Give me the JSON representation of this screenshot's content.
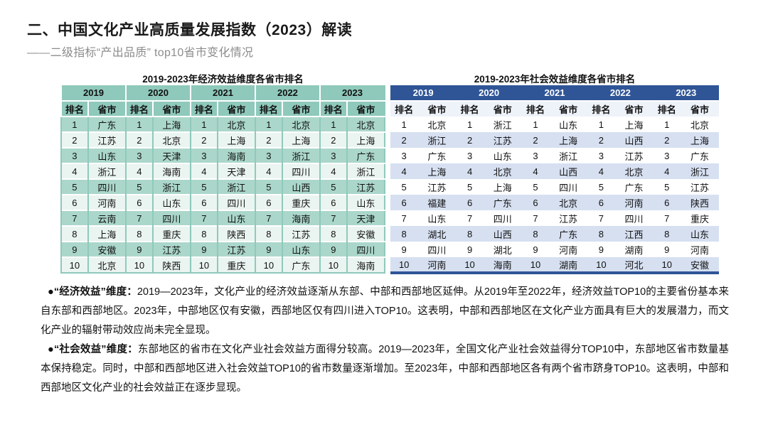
{
  "header": {
    "title": "二、中国文化产业高质量发展指数（2023）解读",
    "subtitle": "——二级指标“产出品质” top10省市变化情况"
  },
  "economic_table": {
    "title": "2019-2023年经济效益维度各省市排名",
    "years": [
      "2019",
      "2020",
      "2021",
      "2022",
      "2023"
    ],
    "rank_header": "排名",
    "province_header": "省市",
    "rows": [
      {
        "rank": "1",
        "provinces": [
          "广东",
          "上海",
          "北京",
          "北京",
          "北京"
        ]
      },
      {
        "rank": "2",
        "provinces": [
          "江苏",
          "北京",
          "上海",
          "上海",
          "上海"
        ]
      },
      {
        "rank": "3",
        "provinces": [
          "山东",
          "天津",
          "海南",
          "浙江",
          "广东"
        ]
      },
      {
        "rank": "4",
        "provinces": [
          "浙江",
          "海南",
          "天津",
          "四川",
          "浙江"
        ]
      },
      {
        "rank": "5",
        "provinces": [
          "四川",
          "浙江",
          "浙江",
          "山西",
          "江苏"
        ]
      },
      {
        "rank": "6",
        "provinces": [
          "河南",
          "山东",
          "四川",
          "重庆",
          "山东"
        ]
      },
      {
        "rank": "7",
        "provinces": [
          "云南",
          "四川",
          "山东",
          "海南",
          "天津"
        ]
      },
      {
        "rank": "8",
        "provinces": [
          "上海",
          "重庆",
          "陕西",
          "江苏",
          "安徽"
        ]
      },
      {
        "rank": "9",
        "provinces": [
          "安徽",
          "江苏",
          "江苏",
          "山东",
          "四川"
        ]
      },
      {
        "rank": "10",
        "provinces": [
          "北京",
          "陕西",
          "重庆",
          "广东",
          "海南"
        ]
      }
    ]
  },
  "social_table": {
    "title": "2019-2023年社会效益维度各省市排名",
    "years": [
      "2019",
      "2020",
      "2021",
      "2022",
      "2023"
    ],
    "rank_header": "排名",
    "province_header": "省市",
    "rows": [
      {
        "rank": "1",
        "provinces": [
          "北京",
          "浙江",
          "山东",
          "上海",
          "北京"
        ]
      },
      {
        "rank": "2",
        "provinces": [
          "浙江",
          "江苏",
          "上海",
          "山西",
          "上海"
        ]
      },
      {
        "rank": "3",
        "provinces": [
          "广东",
          "山东",
          "浙江",
          "江苏",
          "广东"
        ]
      },
      {
        "rank": "4",
        "provinces": [
          "上海",
          "北京",
          "山西",
          "北京",
          "浙江"
        ]
      },
      {
        "rank": "5",
        "provinces": [
          "江苏",
          "上海",
          "四川",
          "广东",
          "江苏"
        ]
      },
      {
        "rank": "6",
        "provinces": [
          "福建",
          "广东",
          "北京",
          "河南",
          "陕西"
        ]
      },
      {
        "rank": "7",
        "provinces": [
          "山东",
          "四川",
          "江苏",
          "四川",
          "重庆"
        ]
      },
      {
        "rank": "8",
        "provinces": [
          "湖北",
          "山西",
          "广东",
          "江西",
          "山东"
        ]
      },
      {
        "rank": "9",
        "provinces": [
          "四川",
          "湖北",
          "河南",
          "湖南",
          "河南"
        ]
      },
      {
        "rank": "10",
        "provinces": [
          "河南",
          "海南",
          "湖南",
          "河北",
          "安徽"
        ]
      }
    ]
  },
  "analysis": {
    "economic_label": "●“经济效益”维度：",
    "economic_text": "2019—2023年，文化产业的经济效益逐渐从东部、中部和西部地区延伸。从2019年至2022年，经济效益TOP10的主要省份基本来自东部和西部地区。2023年，中部地区仅有安徽，西部地区仅有四川进入TOP10。这表明，中部和西部地区在文化产业方面具有巨大的发展潜力，而文化产业的辐射带动效应尚未完全显现。",
    "social_label": "●“社会效益”维度：",
    "social_text": "东部地区的省市在文化产业社会效益方面得分较高。2019—2023年，全国文化产业社会效益得分TOP10中，东部地区省市数量基本保持稳定。同时，中部和西部地区进入社会效益TOP10的省市数量逐渐增加。至2023年，中部和西部地区各有两个省市跻身TOP10。这表明，中部和西部地区文化产业的社会效益正在逐步显现。"
  },
  "colors": {
    "economic_header": "#8fc9bb",
    "economic_row_odd": "#abd7cb",
    "economic_row_even": "#eaf4f0",
    "social_header": "#2f5597",
    "social_subheader": "#eef2f9",
    "social_row_even": "#d6e0f1",
    "title_text": "#1a1a1a",
    "subtitle_text": "#8c8c8c"
  }
}
